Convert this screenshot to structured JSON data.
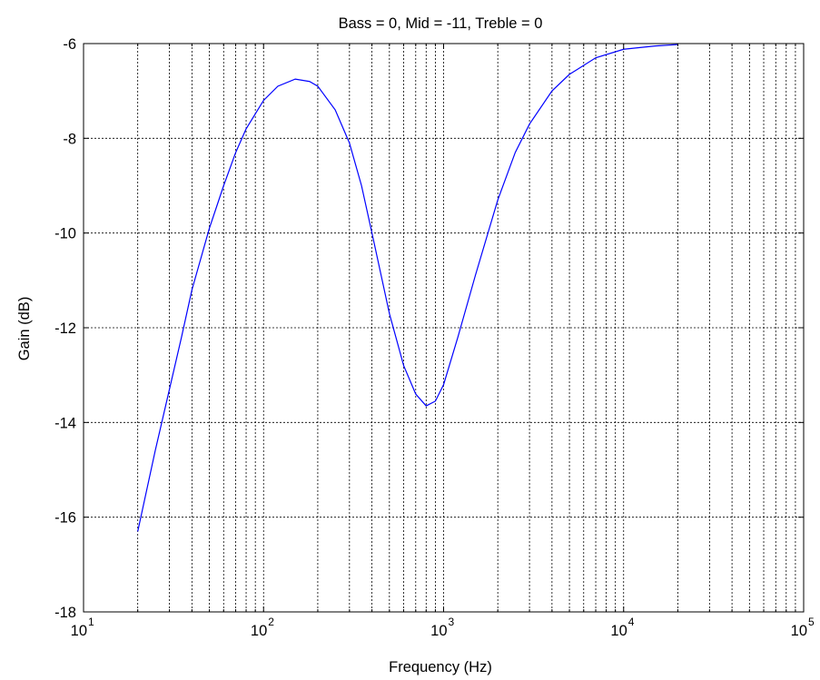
{
  "chart_data": {
    "type": "line",
    "title": "Bass = 0, Mid = -11, Treble = 0",
    "xlabel": "Frequency (Hz)",
    "ylabel": "Gain (dB)",
    "xscale": "log",
    "xlim": [
      10,
      100000
    ],
    "ylim": [
      -18,
      -6
    ],
    "grid": true,
    "x_ticks": [
      {
        "value": 10,
        "base": "10",
        "exp": "1"
      },
      {
        "value": 100,
        "base": "10",
        "exp": "2"
      },
      {
        "value": 1000,
        "base": "10",
        "exp": "3"
      },
      {
        "value": 10000,
        "base": "10",
        "exp": "4"
      },
      {
        "value": 100000,
        "base": "10",
        "exp": "5"
      }
    ],
    "y_ticks": [
      -18,
      -16,
      -14,
      -12,
      -10,
      -8,
      -6
    ],
    "y_tick_labels": [
      "-18",
      "-16",
      "-14",
      "-12",
      "-10",
      "-8",
      "-6"
    ],
    "line_color": "#0000ff",
    "series": [
      {
        "x": [
          20,
          25,
          30,
          35,
          40,
          50,
          60,
          70,
          80,
          100,
          120,
          150,
          180,
          200,
          250,
          300,
          350,
          400,
          500,
          600,
          700,
          800,
          900,
          1000,
          1200,
          1500,
          2000,
          2500,
          3000,
          4000,
          5000,
          7000,
          10000,
          15000,
          20000
        ],
        "y": [
          -16.3,
          -14.6,
          -13.3,
          -12.2,
          -11.2,
          -9.9,
          -9.0,
          -8.3,
          -7.8,
          -7.2,
          -6.9,
          -6.75,
          -6.8,
          -6.9,
          -7.4,
          -8.1,
          -9.0,
          -10.0,
          -11.7,
          -12.8,
          -13.4,
          -13.65,
          -13.55,
          -13.2,
          -12.2,
          -10.9,
          -9.3,
          -8.3,
          -7.7,
          -7.0,
          -6.65,
          -6.3,
          -6.12,
          -6.05,
          -6.02
        ]
      }
    ]
  }
}
